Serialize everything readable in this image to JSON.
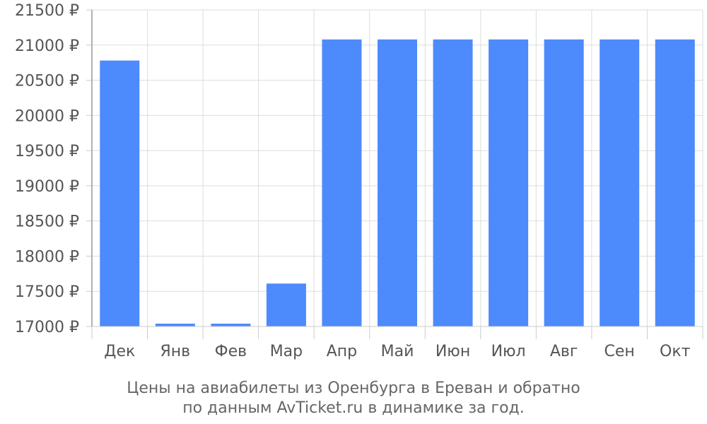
{
  "chart_data": {
    "type": "bar",
    "categories": [
      "Дек",
      "Янв",
      "Фев",
      "Мар",
      "Апр",
      "Май",
      "Июн",
      "Июл",
      "Авг",
      "Сен",
      "Окт"
    ],
    "values": [
      20780,
      17040,
      17040,
      17610,
      21080,
      21080,
      21080,
      21080,
      21080,
      21080,
      21080
    ],
    "ylim": [
      17000,
      21500
    ],
    "yticks": [
      17000,
      17500,
      18000,
      18500,
      19000,
      19500,
      20000,
      20500,
      21000,
      21500
    ],
    "ytick_suffix": " ₽",
    "bar_color": "#4d8afc",
    "grid": true,
    "caption_lines": [
      "Цены на авиабилеты из Оренбурга в Ереван и обратно",
      "по данным AvTicket.ru в динамике за год."
    ]
  }
}
